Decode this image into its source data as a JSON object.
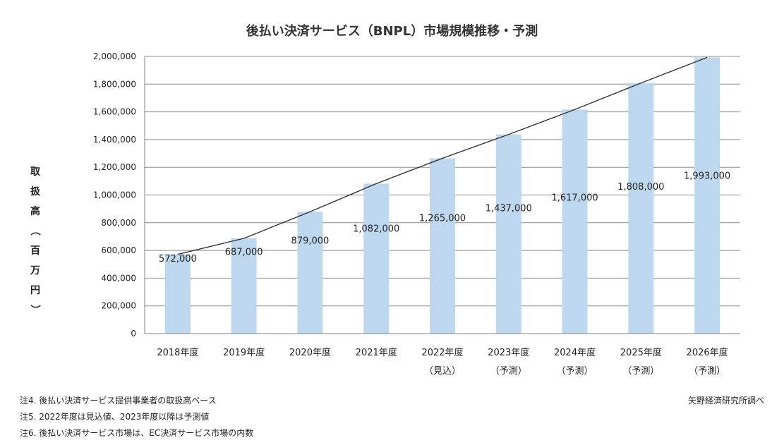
{
  "chart_data": {
    "type": "bar",
    "title": "後払い決済サービス（BNPL）市場規模推移・予測",
    "ylabel": "取扱高（百万円）",
    "xlabel": "",
    "ylim": [
      0,
      2000000
    ],
    "yticks": [
      0,
      200000,
      400000,
      600000,
      800000,
      1000000,
      1200000,
      1400000,
      1600000,
      1800000,
      2000000
    ],
    "ytick_labels": [
      "0",
      "200,000",
      "400,000",
      "600,000",
      "800,000",
      "1,000,000",
      "1,200,000",
      "1,400,000",
      "1,600,000",
      "1,800,000",
      "2,000,000"
    ],
    "categories": [
      "2018年度",
      "2019年度",
      "2020年度",
      "2021年度",
      "2022年度",
      "2023年度",
      "2024年度",
      "2025年度",
      "2026年度"
    ],
    "category_sublabels": [
      "",
      "",
      "",
      "",
      "（見込）",
      "（予測）",
      "（予測）",
      "（予測）",
      "（予測）"
    ],
    "values": [
      572000,
      687000,
      879000,
      1082000,
      1265000,
      1437000,
      1617000,
      1808000,
      1993000
    ],
    "value_labels": [
      "572,000",
      "687,000",
      "879,000",
      "1,082,000",
      "1,265,000",
      "1,437,000",
      "1,617,000",
      "1,808,000",
      "1,993,000"
    ],
    "trend_line": true,
    "grid": true,
    "colors": {
      "bar": "#bdd7ee",
      "grid": "#8c8c8c",
      "axis": "#808080",
      "trend": "#333333"
    }
  },
  "notes": [
    "注4. 後払い決済サービス提供事業者の取扱高ベース",
    "注5. 2022年度は見込値、2023年度以降は予測値",
    "注6. 後払い決済サービス市場は、EC決済サービス市場の内数"
  ],
  "source": "矢野経済研究所調べ"
}
